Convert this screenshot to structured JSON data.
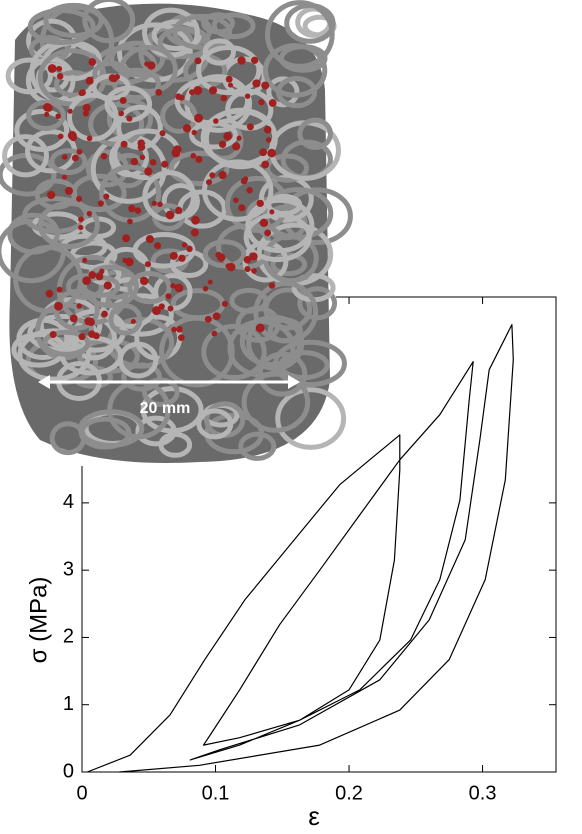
{
  "chart_data": {
    "type": "line",
    "xlabel": "ε",
    "ylabel": "σ (MPa)",
    "annotation": "20 mm",
    "xlim": [
      0,
      0.355
    ],
    "ylim": [
      0,
      7.06
    ],
    "xticks": [
      0,
      0.1,
      0.2,
      0.3
    ],
    "yticks": [
      0,
      1,
      2,
      3,
      4
    ],
    "series": [
      {
        "color": "#000000",
        "x": [
          0.004,
          0.036,
          0.066,
          0.092,
          0.122,
          0.156,
          0.193,
          0.238,
          0.238,
          0.234,
          0.223,
          0.2,
          0.163,
          0.118,
          0.091,
          0.096,
          0.118,
          0.148,
          0.178,
          0.208,
          0.238,
          0.268,
          0.293,
          0.29,
          0.283,
          0.268,
          0.246,
          0.208,
          0.163,
          0.118,
          0.081,
          0.103,
          0.163,
          0.223,
          0.26,
          0.287,
          0.298,
          0.305,
          0.322,
          0.323,
          0.317,
          0.302,
          0.275,
          0.238,
          0.178,
          0.088,
          0.028
        ],
        "values": [
          0,
          0.25,
          0.85,
          1.67,
          2.56,
          3.38,
          4.27,
          5.01,
          4.49,
          3.15,
          1.96,
          1.22,
          0.77,
          0.51,
          0.4,
          0.55,
          1.22,
          2.19,
          3.0,
          3.82,
          4.64,
          5.31,
          6.1,
          5.53,
          4.04,
          2.86,
          1.96,
          1.22,
          0.77,
          0.4,
          0.18,
          0.33,
          0.7,
          1.37,
          2.26,
          3.45,
          4.94,
          5.98,
          6.65,
          6.13,
          4.34,
          2.86,
          1.67,
          0.92,
          0.4,
          0.1,
          0
        ]
      }
    ]
  }
}
